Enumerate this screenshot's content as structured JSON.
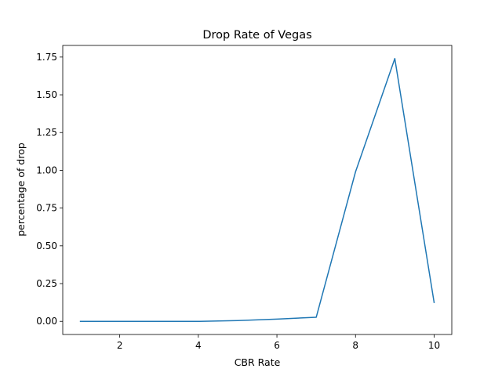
{
  "chart_data": {
    "type": "line",
    "title": "Drop Rate of Vegas",
    "xlabel": "CBR Rate",
    "ylabel": "percentage of drop",
    "x": [
      1,
      2,
      3,
      4,
      5,
      6,
      7,
      8,
      9,
      10
    ],
    "series": [
      {
        "values": [
          0.0,
          0.0,
          0.0,
          0.0,
          0.005,
          0.015,
          0.027,
          0.99,
          1.74,
          0.125
        ],
        "color": "#1f77b4"
      }
    ],
    "xlim": [
      0.55,
      10.45
    ],
    "ylim": [
      -0.087,
      1.827
    ],
    "xticks": [
      2,
      4,
      6,
      8,
      10
    ],
    "xtick_labels": [
      "2",
      "4",
      "6",
      "8",
      "10"
    ],
    "yticks": [
      0.0,
      0.25,
      0.5,
      0.75,
      1.0,
      1.25,
      1.5,
      1.75
    ],
    "ytick_labels": [
      "0.00",
      "0.25",
      "0.50",
      "0.75",
      "1.00",
      "1.25",
      "1.50",
      "1.75"
    ],
    "grid": false,
    "legend": "none"
  }
}
